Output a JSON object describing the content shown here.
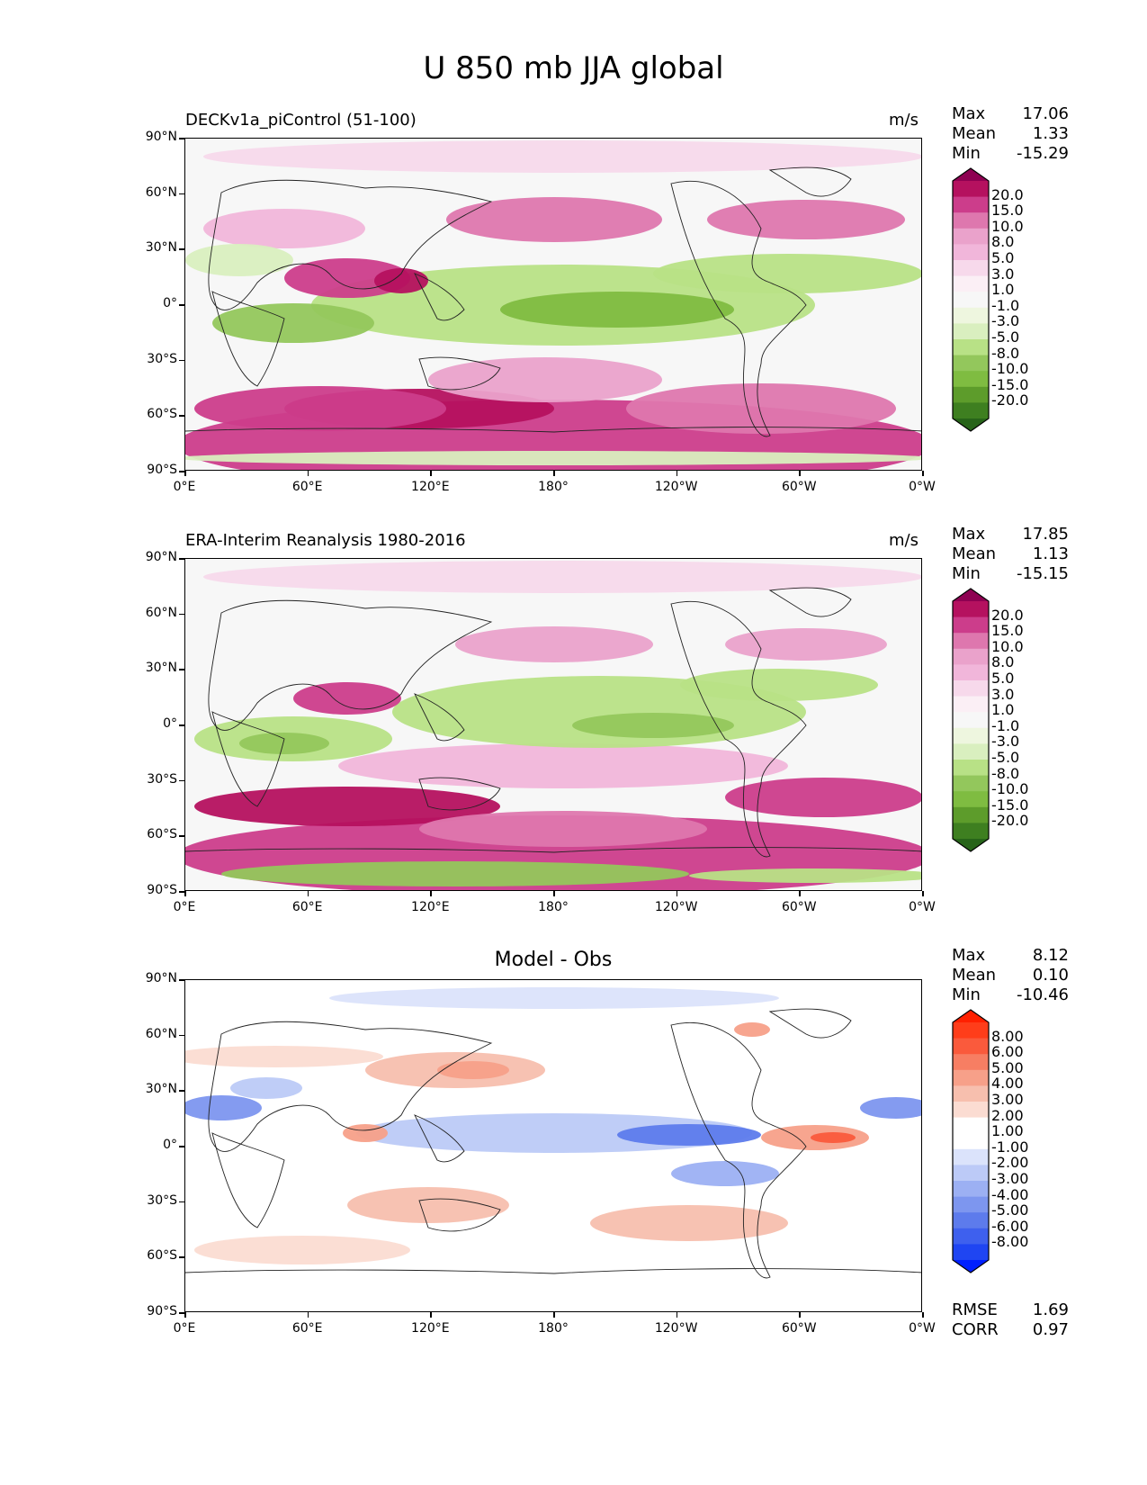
{
  "title": "U 850 mb JJA global",
  "x_ticks": [
    "0°E",
    "60°E",
    "120°E",
    "180°",
    "120°W",
    "60°W",
    "0°W"
  ],
  "y_ticks": [
    "90°N",
    "60°N",
    "30°N",
    "0°",
    "30°S",
    "60°S",
    "90°S"
  ],
  "panels": [
    {
      "name": "DECKv1a_piControl (51-100)",
      "units": "m/s",
      "stats": {
        "max_label": "Max",
        "max": "17.06",
        "mean_label": "Mean",
        "mean": "1.33",
        "min_label": "Min",
        "min": "-15.29"
      },
      "colorbar": {
        "labels": [
          "20.0",
          "15.0",
          "10.0",
          "8.0",
          "5.0",
          "3.0",
          "1.0",
          "-1.0",
          "-3.0",
          "-5.0",
          "-8.0",
          "-10.0",
          "-15.0",
          "-20.0"
        ],
        "colors": [
          "#8e0152",
          "#b5115f",
          "#cc3d8b",
          "#de77ae",
          "#eaa2cb",
          "#f1b6da",
          "#f7d9eb",
          "#fbeff5",
          "#f7f7f7",
          "#eef6df",
          "#d9efbf",
          "#b8e186",
          "#93c75c",
          "#7fbc41",
          "#5d9c2b",
          "#3e7f20",
          "#276419"
        ]
      }
    },
    {
      "name": "ERA-Interim Reanalysis 1980-2016",
      "units": "m/s",
      "stats": {
        "max_label": "Max",
        "max": "17.85",
        "mean_label": "Mean",
        "mean": "1.13",
        "min_label": "Min",
        "min": "-15.15"
      },
      "colorbar": {
        "labels": [
          "20.0",
          "15.0",
          "10.0",
          "8.0",
          "5.0",
          "3.0",
          "1.0",
          "-1.0",
          "-3.0",
          "-5.0",
          "-8.0",
          "-10.0",
          "-15.0",
          "-20.0"
        ],
        "colors": [
          "#8e0152",
          "#b5115f",
          "#cc3d8b",
          "#de77ae",
          "#eaa2cb",
          "#f1b6da",
          "#f7d9eb",
          "#fbeff5",
          "#f7f7f7",
          "#eef6df",
          "#d9efbf",
          "#b8e186",
          "#93c75c",
          "#7fbc41",
          "#5d9c2b",
          "#3e7f20",
          "#276419"
        ]
      }
    },
    {
      "name": "Model - Obs",
      "units": "",
      "stats": {
        "max_label": "Max",
        "max": "8.12",
        "mean_label": "Mean",
        "mean": "0.10",
        "min_label": "Min",
        "min": "-10.46"
      },
      "metrics": {
        "rmse_label": "RMSE",
        "rmse": "1.69",
        "corr_label": "CORR",
        "corr": "0.97"
      },
      "colorbar": {
        "labels": [
          "8.00",
          "6.00",
          "5.00",
          "4.00",
          "3.00",
          "2.00",
          "1.00",
          "-1.00",
          "-2.00",
          "-3.00",
          "-4.00",
          "-5.00",
          "-6.00",
          "-8.00"
        ],
        "colors": [
          "#ff2000",
          "#ff3d1a",
          "#fa5a3c",
          "#f77e63",
          "#f7a089",
          "#f7bfae",
          "#fbdcd2",
          "#ffffff",
          "#ffffff",
          "#dbe3fb",
          "#bccaf7",
          "#9cb0f3",
          "#7d96ef",
          "#5d7bec",
          "#3e60ee",
          "#1f45f2",
          "#0020ff"
        ]
      }
    }
  ]
}
